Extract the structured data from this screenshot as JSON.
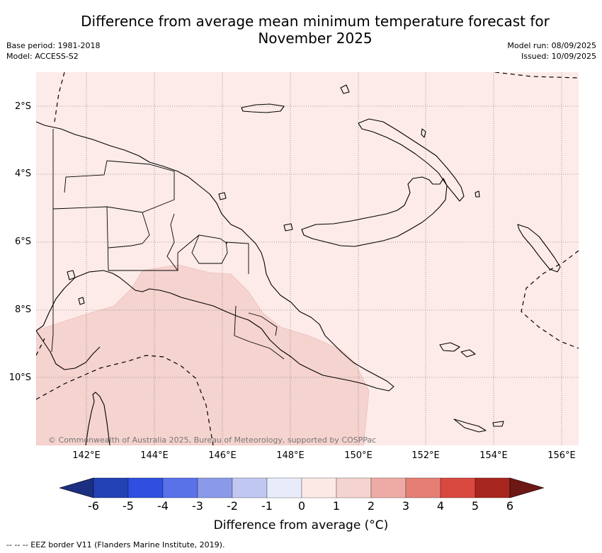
{
  "title_line1": "Difference from average mean minimum temperature forecast for",
  "title_line2": "November 2025",
  "base_period": "Base period: 1981-2018",
  "model": "Model: ACCESS-S2",
  "model_run": "Model run: 08/09/2025",
  "issued": "Issued: 10/09/2025",
  "lat_labels": [
    "2°S",
    "4°S",
    "6°S",
    "8°S",
    "10°S"
  ],
  "lon_labels": [
    "142°E",
    "144°E",
    "146°E",
    "148°E",
    "150°E",
    "152°E",
    "154°E",
    "156°E"
  ],
  "watermark": "© Commonwealth of Australia 2025, Bureau of Meteorology, supported by COSPPac",
  "colorbar": {
    "ticks": [
      "-6",
      "-5",
      "-4",
      "-3",
      "-2",
      "-1",
      "0",
      "1",
      "2",
      "3",
      "4",
      "5",
      "6"
    ],
    "colors": [
      "#1c2f80",
      "#2241b4",
      "#2f4fe0",
      "#5a72e8",
      "#8a9ae8",
      "#c0c8f2",
      "#e8ecfa",
      "#fce9e6",
      "#f5d3cf",
      "#eeaba5",
      "#e57f76",
      "#d9483f",
      "#a82620",
      "#6e1815"
    ],
    "label": "Difference from average (°C)"
  },
  "map_colors": {
    "land_fill": "#fcebe9",
    "anomaly_1_2": "#f5d3cf",
    "coast": "#000000"
  },
  "footer": "-- -- -- EEZ border V11 (Flanders Marine Institute, 2019)."
}
